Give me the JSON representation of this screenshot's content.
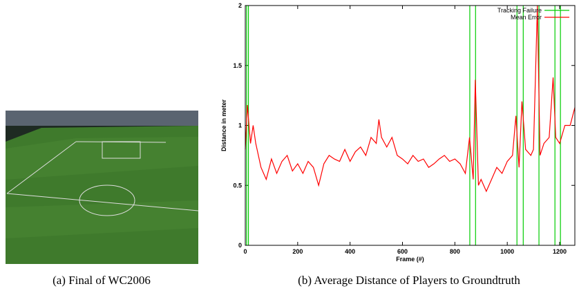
{
  "figure": {
    "image_caption": "(a) Final of WC2006",
    "chart_caption": "(b) Average Distance of Players to Groundtruth",
    "chart_data": {
      "type": "line",
      "x_label": "Frame (#)",
      "y_label": "Distance in meter",
      "xlim": [
        0,
        1258
      ],
      "ylim": [
        0,
        2
      ],
      "xticks": [
        0,
        200,
        400,
        600,
        800,
        1000,
        1200
      ],
      "yticks": [
        0,
        0.5,
        1,
        1.5,
        2
      ],
      "legend": "top-right",
      "failures": {
        "name": "Tracking Failure",
        "color": "#00cc00",
        "x": [
          5,
          12,
          857,
          879,
          1037,
          1061,
          1121,
          1182,
          1203
        ]
      },
      "series": [
        {
          "name": "Mean Error",
          "color": "#ff0000",
          "x": [
            0,
            8,
            20,
            30,
            40,
            60,
            80,
            100,
            120,
            140,
            160,
            180,
            200,
            220,
            240,
            260,
            280,
            300,
            320,
            340,
            360,
            380,
            400,
            420,
            440,
            460,
            480,
            500,
            510,
            520,
            540,
            560,
            580,
            600,
            620,
            640,
            660,
            680,
            700,
            720,
            740,
            760,
            780,
            800,
            820,
            840,
            856,
            870,
            878,
            890,
            900,
            920,
            940,
            960,
            980,
            1000,
            1020,
            1033,
            1045,
            1056,
            1070,
            1090,
            1100,
            1115,
            1125,
            1140,
            1160,
            1175,
            1185,
            1200,
            1220,
            1240,
            1258
          ],
          "values": [
            0.8,
            1.17,
            0.85,
            1.0,
            0.85,
            0.65,
            0.55,
            0.72,
            0.6,
            0.7,
            0.75,
            0.62,
            0.68,
            0.6,
            0.7,
            0.65,
            0.5,
            0.68,
            0.75,
            0.72,
            0.7,
            0.8,
            0.7,
            0.78,
            0.82,
            0.75,
            0.9,
            0.85,
            1.05,
            0.9,
            0.82,
            0.9,
            0.75,
            0.72,
            0.68,
            0.75,
            0.7,
            0.72,
            0.65,
            0.68,
            0.72,
            0.75,
            0.7,
            0.72,
            0.68,
            0.6,
            0.9,
            0.55,
            1.38,
            0.5,
            0.55,
            0.45,
            0.55,
            0.65,
            0.6,
            0.7,
            0.75,
            1.08,
            0.65,
            1.2,
            0.8,
            0.75,
            0.8,
            2,
            0.75,
            0.85,
            0.9,
            1.4,
            0.9,
            0.85,
            1.0,
            1.0,
            1.15
          ]
        }
      ]
    }
  }
}
